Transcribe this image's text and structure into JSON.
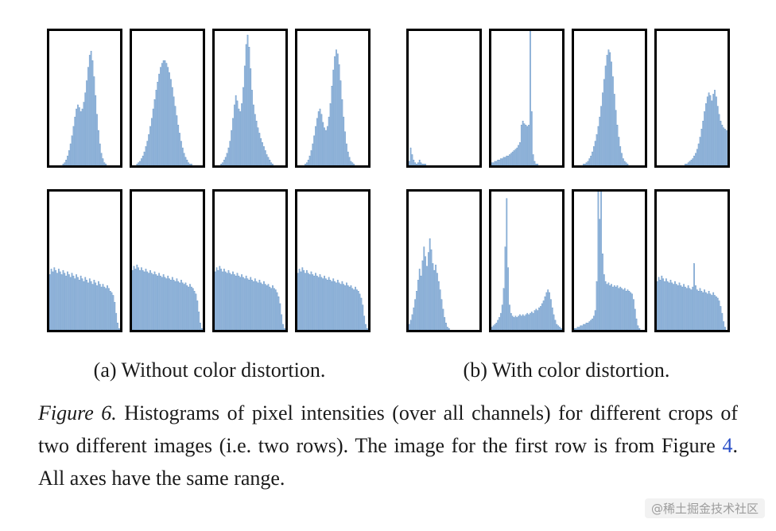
{
  "colors": {
    "text": "#1a1a1a",
    "panel_border": "#000000",
    "hist_fill": "#8fb2d9",
    "hist_stroke": "#6a99c8",
    "link": "#2b50c8",
    "watermark": "#9c9c9c"
  },
  "subcaptions": {
    "a": "(a) Without color distortion.",
    "b": "(b) With color distortion."
  },
  "figure_caption": {
    "label": "Figure 6.",
    "body_before_link": "Histograms of pixel intensities (over all channels) for different crops of two different images (i.e. two rows). The image for the first row is from Figure",
    "link_text": "4",
    "body_after_link": ". All axes have the same range."
  },
  "watermark": "@稀土掘金技术社区",
  "chart_data": {
    "type": "bar",
    "subtype": "histogram-grid",
    "title": "Histograms of pixel intensities (over all channels)",
    "axes_note": "16 panels; all axes share the same range; no tick labels shown",
    "bins_per_panel": 48,
    "value_scale": "normalized bar heights 0-1 relative to panel height",
    "layout": {
      "rows": 2,
      "groups_per_row": 2,
      "panels_per_group": 4,
      "row_meaning": "each row is a different source image; each panel a different crop",
      "group_labels": [
        "(a) Without color distortion.",
        "(b) With color distortion."
      ]
    },
    "panels": {
      "row1_without": [
        [
          0,
          0,
          0,
          0,
          0,
          0,
          0,
          0,
          0,
          0.01,
          0.02,
          0.04,
          0.07,
          0.11,
          0.16,
          0.22,
          0.29,
          0.36,
          0.42,
          0.45,
          0.43,
          0.4,
          0.42,
          0.47,
          0.54,
          0.63,
          0.73,
          0.82,
          0.85,
          0.78,
          0.66,
          0.52,
          0.38,
          0.26,
          0.16,
          0.09,
          0.05,
          0.02,
          0.01,
          0,
          0,
          0,
          0,
          0,
          0,
          0,
          0,
          0
        ],
        [
          0,
          0,
          0,
          0.01,
          0.02,
          0.03,
          0.05,
          0.07,
          0.1,
          0.14,
          0.18,
          0.23,
          0.29,
          0.35,
          0.42,
          0.49,
          0.56,
          0.62,
          0.68,
          0.73,
          0.76,
          0.78,
          0.78,
          0.76,
          0.73,
          0.69,
          0.64,
          0.58,
          0.51,
          0.44,
          0.37,
          0.3,
          0.24,
          0.18,
          0.13,
          0.09,
          0.06,
          0.04,
          0.02,
          0.01,
          0.01,
          0,
          0,
          0,
          0,
          0,
          0,
          0
        ],
        [
          0,
          0,
          0,
          0,
          0.01,
          0.02,
          0.04,
          0.06,
          0.09,
          0.13,
          0.18,
          0.26,
          0.35,
          0.45,
          0.52,
          0.48,
          0.42,
          0.4,
          0.46,
          0.58,
          0.74,
          0.9,
          0.97,
          0.88,
          0.72,
          0.56,
          0.45,
          0.38,
          0.33,
          0.28,
          0.24,
          0.2,
          0.17,
          0.14,
          0.11,
          0.08,
          0.06,
          0.04,
          0.02,
          0.01,
          0,
          0,
          0,
          0,
          0,
          0,
          0,
          0
        ],
        [
          0,
          0,
          0,
          0,
          0,
          0.01,
          0.02,
          0.04,
          0.07,
          0.11,
          0.16,
          0.22,
          0.29,
          0.35,
          0.4,
          0.42,
          0.38,
          0.32,
          0.28,
          0.26,
          0.29,
          0.36,
          0.46,
          0.59,
          0.71,
          0.81,
          0.86,
          0.83,
          0.75,
          0.63,
          0.49,
          0.36,
          0.25,
          0.16,
          0.1,
          0.06,
          0.03,
          0.02,
          0.01,
          0,
          0,
          0,
          0,
          0,
          0,
          0,
          0,
          0
        ]
      ],
      "row1_with": [
        [
          0.03,
          0.13,
          0.08,
          0.04,
          0.02,
          0.01,
          0.02,
          0.04,
          0.02,
          0.01,
          0.01,
          0.01,
          0,
          0,
          0,
          0,
          0,
          0,
          0,
          0,
          0,
          0,
          0,
          0,
          0,
          0,
          0,
          0,
          0,
          0,
          0,
          0,
          0,
          0,
          0,
          0,
          0,
          0,
          0,
          0,
          0,
          0,
          0,
          0,
          0,
          0,
          0,
          0
        ],
        [
          0.02,
          0.02,
          0.03,
          0.03,
          0.04,
          0.04,
          0.05,
          0.05,
          0.06,
          0.06,
          0.07,
          0.07,
          0.08,
          0.09,
          0.1,
          0.11,
          0.12,
          0.13,
          0.15,
          0.17,
          0.3,
          0.33,
          0.31,
          0.3,
          0.29,
          0.3,
          1.0,
          0.4,
          0.08,
          0.03,
          0.01,
          0.01,
          0,
          0,
          0,
          0,
          0,
          0,
          0,
          0,
          0,
          0,
          0,
          0,
          0,
          0,
          0,
          0
        ],
        [
          0,
          0,
          0,
          0,
          0,
          0,
          0.01,
          0.01,
          0.02,
          0.03,
          0.05,
          0.07,
          0.1,
          0.14,
          0.18,
          0.23,
          0.29,
          0.36,
          0.44,
          0.54,
          0.64,
          0.74,
          0.82,
          0.86,
          0.84,
          0.77,
          0.66,
          0.53,
          0.41,
          0.3,
          0.21,
          0.14,
          0.09,
          0.05,
          0.03,
          0.02,
          0.01,
          0,
          0,
          0,
          0,
          0,
          0,
          0,
          0,
          0,
          0,
          0
        ],
        [
          0,
          0,
          0,
          0,
          0,
          0,
          0,
          0,
          0,
          0,
          0,
          0,
          0,
          0,
          0,
          0,
          0,
          0,
          0,
          0.01,
          0.01,
          0.02,
          0.03,
          0.04,
          0.05,
          0.07,
          0.09,
          0.12,
          0.16,
          0.21,
          0.27,
          0.33,
          0.4,
          0.46,
          0.51,
          0.54,
          0.52,
          0.48,
          0.53,
          0.56,
          0.51,
          0.44,
          0.38,
          0.33,
          0.3,
          0.28,
          0.27,
          0.26
        ]
      ],
      "row2_without": [
        [
          0.4,
          0.44,
          0.42,
          0.45,
          0.43,
          0.41,
          0.44,
          0.42,
          0.4,
          0.43,
          0.41,
          0.39,
          0.42,
          0.4,
          0.38,
          0.41,
          0.39,
          0.37,
          0.4,
          0.38,
          0.36,
          0.39,
          0.37,
          0.35,
          0.38,
          0.36,
          0.34,
          0.37,
          0.35,
          0.33,
          0.36,
          0.34,
          0.32,
          0.35,
          0.33,
          0.31,
          0.33,
          0.31,
          0.3,
          0.32,
          0.3,
          0.28,
          0.27,
          0.25,
          0.2,
          0.12,
          0.05,
          0.01
        ],
        [
          0.43,
          0.46,
          0.44,
          0.47,
          0.45,
          0.43,
          0.45,
          0.43,
          0.42,
          0.44,
          0.42,
          0.41,
          0.43,
          0.41,
          0.4,
          0.42,
          0.4,
          0.39,
          0.41,
          0.39,
          0.38,
          0.4,
          0.38,
          0.37,
          0.39,
          0.37,
          0.36,
          0.38,
          0.36,
          0.35,
          0.37,
          0.35,
          0.34,
          0.36,
          0.34,
          0.33,
          0.34,
          0.32,
          0.31,
          0.33,
          0.31,
          0.3,
          0.28,
          0.26,
          0.21,
          0.13,
          0.05,
          0.01
        ],
        [
          0.42,
          0.45,
          0.43,
          0.46,
          0.44,
          0.42,
          0.44,
          0.42,
          0.41,
          0.43,
          0.41,
          0.4,
          0.42,
          0.4,
          0.39,
          0.41,
          0.39,
          0.38,
          0.4,
          0.38,
          0.37,
          0.39,
          0.37,
          0.36,
          0.38,
          0.36,
          0.35,
          0.37,
          0.35,
          0.34,
          0.36,
          0.34,
          0.33,
          0.35,
          0.33,
          0.32,
          0.33,
          0.31,
          0.3,
          0.32,
          0.3,
          0.29,
          0.27,
          0.24,
          0.19,
          0.11,
          0.04,
          0.01
        ],
        [
          0.41,
          0.44,
          0.42,
          0.45,
          0.43,
          0.41,
          0.43,
          0.41,
          0.4,
          0.42,
          0.4,
          0.39,
          0.41,
          0.39,
          0.38,
          0.4,
          0.38,
          0.37,
          0.39,
          0.37,
          0.36,
          0.38,
          0.36,
          0.35,
          0.37,
          0.35,
          0.34,
          0.36,
          0.34,
          0.33,
          0.35,
          0.33,
          0.32,
          0.34,
          0.32,
          0.31,
          0.32,
          0.3,
          0.29,
          0.31,
          0.29,
          0.28,
          0.26,
          0.23,
          0.18,
          0.1,
          0.04,
          0.01
        ]
      ],
      "row2_with": [
        [
          0.04,
          0.07,
          0.11,
          0.16,
          0.22,
          0.28,
          0.36,
          0.44,
          0.39,
          0.5,
          0.6,
          0.53,
          0.46,
          0.56,
          0.66,
          0.58,
          0.48,
          0.43,
          0.47,
          0.41,
          0.35,
          0.29,
          0.22,
          0.15,
          0.09,
          0.05,
          0.02,
          0.01,
          0,
          0,
          0,
          0,
          0,
          0,
          0,
          0,
          0,
          0,
          0,
          0,
          0,
          0,
          0,
          0,
          0,
          0,
          0,
          0
        ],
        [
          0.02,
          0.03,
          0.04,
          0.05,
          0.07,
          0.09,
          0.12,
          0.18,
          0.3,
          0.6,
          0.95,
          0.45,
          0.18,
          0.12,
          0.1,
          0.09,
          0.1,
          0.09,
          0.1,
          0.11,
          0.1,
          0.11,
          0.1,
          0.11,
          0.12,
          0.11,
          0.12,
          0.13,
          0.12,
          0.14,
          0.15,
          0.14,
          0.16,
          0.17,
          0.19,
          0.21,
          0.24,
          0.27,
          0.29,
          0.27,
          0.22,
          0.16,
          0.11,
          0.07,
          0.04,
          0.03,
          0.02,
          0.01
        ],
        [
          0.01,
          0.01,
          0.02,
          0.02,
          0.03,
          0.03,
          0.04,
          0.04,
          0.05,
          0.05,
          0.06,
          0.07,
          0.08,
          0.1,
          0.14,
          0.35,
          1.0,
          0.8,
          1.0,
          0.55,
          0.4,
          0.35,
          0.33,
          0.34,
          0.32,
          0.33,
          0.31,
          0.32,
          0.31,
          0.32,
          0.3,
          0.31,
          0.3,
          0.29,
          0.3,
          0.28,
          0.29,
          0.28,
          0.27,
          0.26,
          0.22,
          0.15,
          0.08,
          0.03,
          0.01,
          0,
          0,
          0
        ],
        [
          0.35,
          0.38,
          0.36,
          0.39,
          0.37,
          0.35,
          0.37,
          0.35,
          0.34,
          0.36,
          0.34,
          0.33,
          0.35,
          0.33,
          0.32,
          0.34,
          0.32,
          0.31,
          0.33,
          0.31,
          0.3,
          0.32,
          0.3,
          0.29,
          0.31,
          0.48,
          0.32,
          0.29,
          0.28,
          0.3,
          0.28,
          0.27,
          0.29,
          0.27,
          0.26,
          0.28,
          0.26,
          0.25,
          0.27,
          0.25,
          0.24,
          0.23,
          0.21,
          0.17,
          0.12,
          0.06,
          0.02,
          0
        ]
      ]
    }
  }
}
